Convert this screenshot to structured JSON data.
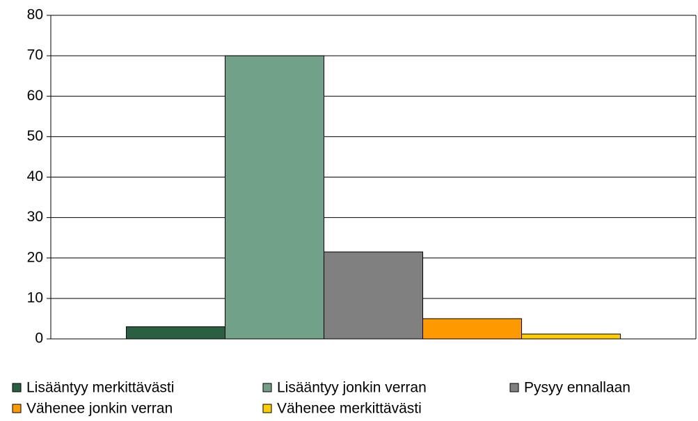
{
  "chart_data": {
    "type": "bar",
    "categories": [
      null
    ],
    "series": [
      {
        "name": "Lisääntyy merkittävästi",
        "color": "#2b5f42",
        "values": [
          3
        ]
      },
      {
        "name": "Lisääntyy jonkin verran",
        "color": "#72a189",
        "values": [
          70
        ]
      },
      {
        "name": "Pysyy ennallaan",
        "color": "#808080",
        "values": [
          21.5
        ]
      },
      {
        "name": "Vähenee jonkin verran",
        "color": "#ff9900",
        "values": [
          5
        ]
      },
      {
        "name": "Vähenee merkittävästi",
        "color": "#ffcc00",
        "values": [
          1.2
        ]
      }
    ],
    "ylim": [
      0,
      80
    ],
    "yticks": [
      0,
      10,
      20,
      30,
      40,
      50,
      60,
      70,
      80
    ],
    "grid": true
  }
}
